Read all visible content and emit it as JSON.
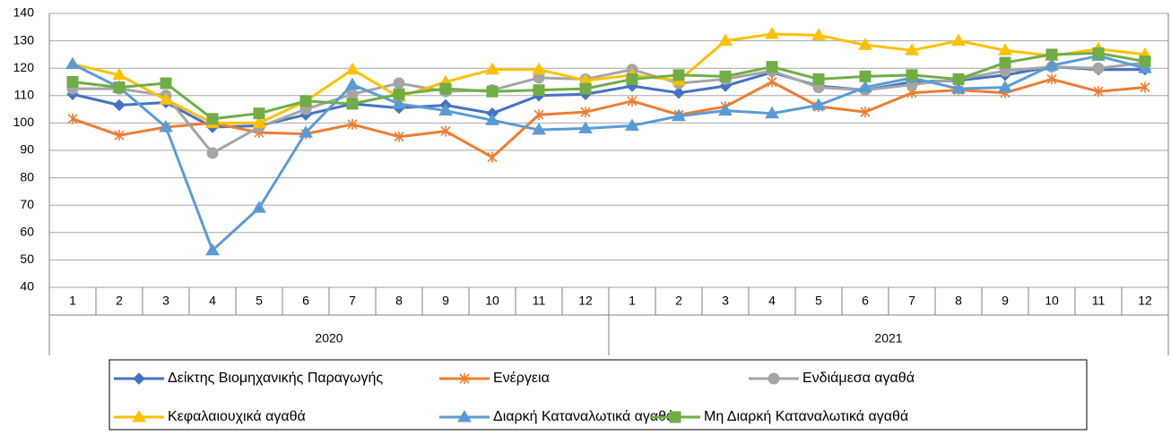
{
  "chart_data": {
    "type": "line",
    "categories": [
      "1",
      "2",
      "3",
      "4",
      "5",
      "6",
      "7",
      "8",
      "9",
      "10",
      "11",
      "12",
      "1",
      "2",
      "3",
      "4",
      "5",
      "6",
      "7",
      "8",
      "9",
      "10",
      "11",
      "12"
    ],
    "groups": [
      "2020",
      "2021"
    ],
    "ylim": [
      40,
      140
    ],
    "yticks": [
      40,
      50,
      60,
      70,
      80,
      90,
      100,
      110,
      120,
      130,
      140
    ],
    "grid": true,
    "series": [
      {
        "name": "Δείκτης Βιομηχανικής Παραγωγής",
        "color": "#4472c4",
        "marker": "diamond",
        "values": [
          110.5,
          106.5,
          107.5,
          98.5,
          99,
          103,
          107,
          105.5,
          106.5,
          103.5,
          110,
          110.5,
          113.5,
          111,
          113.5,
          118.5,
          113.5,
          112,
          115,
          115.5,
          117.5,
          120.5,
          119.5,
          119.5
        ]
      },
      {
        "name": "Ενέργεια",
        "color": "#ed7d31",
        "marker": "star",
        "values": [
          101.5,
          95.5,
          98.5,
          100,
          96.5,
          96,
          99.5,
          95,
          97,
          87.5,
          103,
          104,
          108,
          103,
          106,
          115,
          106,
          104,
          111,
          112,
          111,
          116,
          111.5,
          113
        ]
      },
      {
        "name": "Ενδιάμεσα αγαθά",
        "color": "#a5a5a5",
        "marker": "circle",
        "values": [
          112.5,
          112.5,
          110,
          89,
          98.5,
          105,
          110.5,
          114.5,
          111.5,
          112,
          116.5,
          116,
          119.5,
          114.5,
          116,
          119,
          113,
          112,
          114,
          116,
          119,
          120.5,
          120,
          122
        ]
      },
      {
        "name": "Κεφαλαιουχικά αγαθά",
        "color": "#ffc000",
        "marker": "triangle",
        "values": [
          121.5,
          117.5,
          108.5,
          100,
          100,
          108,
          119.5,
          109.5,
          115,
          119.5,
          119.5,
          115.5,
          117.5,
          115.5,
          130,
          132.5,
          132,
          128.5,
          126.5,
          130,
          126.5,
          124.5,
          127,
          125
        ]
      },
      {
        "name": "Διαρκή Καταναλωτικά αγαθά",
        "color": "#5b9bd5",
        "marker": "triangle",
        "values": [
          121.5,
          113,
          98.5,
          53.5,
          69,
          96.5,
          114,
          107,
          104.5,
          101,
          97.5,
          98,
          99,
          102.5,
          104.5,
          103.5,
          106.5,
          113,
          116.5,
          112.5,
          113,
          121,
          124.5,
          120
        ]
      },
      {
        "name": "Μη Διαρκή Καταναλωτικά αγαθά",
        "color": "#70ad47",
        "marker": "square",
        "values": [
          115,
          113,
          114.5,
          101.5,
          103.5,
          108,
          107,
          110.5,
          112.5,
          111.5,
          112,
          112.5,
          116,
          117.5,
          117,
          120.5,
          116,
          117,
          117.5,
          116,
          122,
          125,
          125.5,
          122.5
        ]
      }
    ]
  }
}
